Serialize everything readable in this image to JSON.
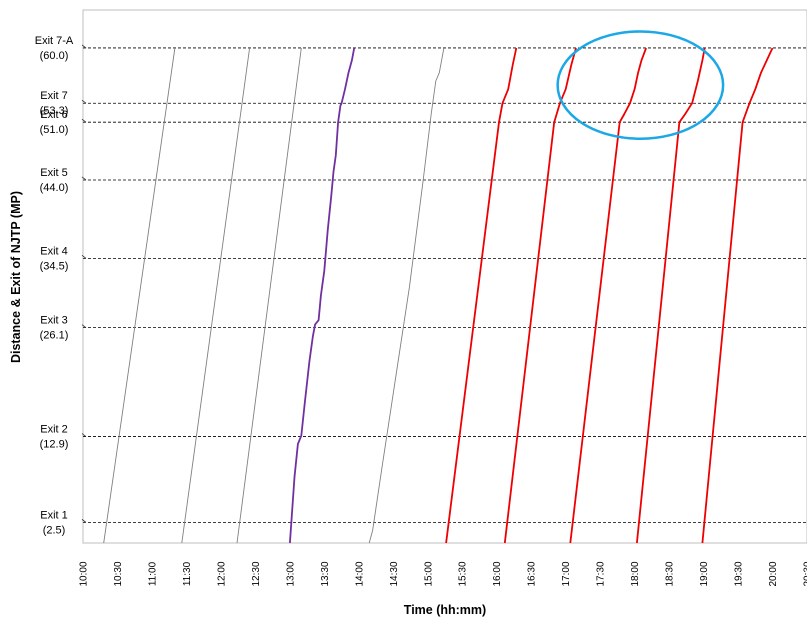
{
  "chart_data": {
    "type": "line",
    "title": "",
    "xlabel": "Time (hh:mm)",
    "ylabel": "Distance & Exit of NJTP  (MP)",
    "xlim": [
      "10:00",
      "20:30"
    ],
    "ylim": [
      0,
      64.6
    ],
    "x_ticks": [
      "10:00",
      "10:30",
      "11:00",
      "11:30",
      "12:00",
      "12:30",
      "13:00",
      "13:30",
      "14:00",
      "14:30",
      "15:00",
      "15:30",
      "16:00",
      "16:30",
      "17:00",
      "17:30",
      "18:00",
      "18:30",
      "19:00",
      "19:30",
      "20:00",
      "20:30"
    ],
    "exits": [
      {
        "name": "Exit 1",
        "mp": "(2.5)",
        "value": 2.5
      },
      {
        "name": "Exit 2",
        "mp": "(12.9)",
        "value": 12.9
      },
      {
        "name": "Exit 3",
        "mp": "(26.1)",
        "value": 26.1
      },
      {
        "name": "Exit 4",
        "mp": "(34.5)",
        "value": 34.5
      },
      {
        "name": "Exit 5",
        "mp": "(44.0)",
        "value": 44.0
      },
      {
        "name": "Exit 6",
        "mp": "(51.0)",
        "value": 51.0
      },
      {
        "name": "Exit 7",
        "mp": "(53.3)",
        "value": 53.3
      },
      {
        "name": "Exit 7-A",
        "mp": "(60.0)",
        "value": 60.0
      }
    ],
    "grid": false,
    "legend": "none",
    "highlight": {
      "shape": "ellipse",
      "color": "#1ca7e6",
      "x_center": "18:05",
      "y_center": 55.5,
      "x_halfwidth_min": 72,
      "y_halfwidth": 6.5
    },
    "series": [
      {
        "color": "#808080",
        "width": 0.9,
        "points": [
          [
            "10:18",
            0
          ],
          [
            "11:20",
            60
          ]
        ]
      },
      {
        "color": "#808080",
        "width": 0.9,
        "points": [
          [
            "11:26",
            0
          ],
          [
            "12:25",
            60
          ]
        ]
      },
      {
        "color": "#808080",
        "width": 0.9,
        "points": [
          [
            "12:14",
            0
          ],
          [
            "13:10",
            60
          ]
        ]
      },
      {
        "color": "#808080",
        "width": 0.9,
        "points": [
          [
            "14:09",
            0
          ],
          [
            "14:12",
            1.5
          ],
          [
            "14:20",
            9
          ],
          [
            "14:32",
            20
          ],
          [
            "14:44",
            31
          ],
          [
            "14:56",
            44
          ],
          [
            "15:03",
            52
          ],
          [
            "15:07",
            56
          ],
          [
            "15:10",
            57
          ],
          [
            "15:14",
            60
          ]
        ]
      },
      {
        "color": "#7030a0",
        "width": 1.8,
        "points": [
          [
            "13:00",
            0
          ],
          [
            "13:04",
            8
          ],
          [
            "13:07",
            12
          ],
          [
            "13:10",
            13
          ],
          [
            "13:13",
            17
          ],
          [
            "13:17",
            22
          ],
          [
            "13:20",
            25
          ],
          [
            "13:22",
            26.5
          ],
          [
            "13:25",
            27
          ],
          [
            "13:27",
            30
          ],
          [
            "13:30",
            33
          ],
          [
            "13:33",
            38
          ],
          [
            "13:36",
            42
          ],
          [
            "13:38",
            45
          ],
          [
            "13:40",
            47
          ],
          [
            "13:42",
            51
          ],
          [
            "13:44",
            53
          ],
          [
            "13:45",
            53.3
          ],
          [
            "13:48",
            55
          ],
          [
            "13:51",
            57
          ],
          [
            "13:54",
            58.5
          ],
          [
            "13:56",
            60
          ]
        ]
      },
      {
        "color": "#ee0000",
        "width": 1.8,
        "points": [
          [
            "15:16",
            0
          ],
          [
            "16:02",
            51
          ],
          [
            "16:05",
            53.3
          ],
          [
            "16:10",
            55
          ],
          [
            "16:14",
            58
          ],
          [
            "16:17",
            60
          ]
        ]
      },
      {
        "color": "#ee0000",
        "width": 1.8,
        "points": [
          [
            "16:07",
            0
          ],
          [
            "16:50",
            51
          ],
          [
            "16:55",
            53.3
          ],
          [
            "17:00",
            55
          ],
          [
            "17:05",
            58
          ],
          [
            "17:09",
            60
          ]
        ]
      },
      {
        "color": "#ee0000",
        "width": 1.8,
        "points": [
          [
            "17:04",
            0
          ],
          [
            "17:47",
            51
          ],
          [
            "17:51",
            52
          ],
          [
            "17:56",
            53.3
          ],
          [
            "18:00",
            55
          ],
          [
            "18:03",
            57
          ],
          [
            "18:06",
            58.5
          ],
          [
            "18:10",
            60
          ]
        ]
      },
      {
        "color": "#ee0000",
        "width": 1.8,
        "points": [
          [
            "18:02",
            0
          ],
          [
            "18:39",
            51
          ],
          [
            "18:44",
            52
          ],
          [
            "18:50",
            53.3
          ],
          [
            "18:55",
            56
          ],
          [
            "18:59",
            58.5
          ],
          [
            "19:01",
            60
          ]
        ]
      },
      {
        "color": "#ee0000",
        "width": 1.8,
        "points": [
          [
            "18:59",
            0
          ],
          [
            "19:34",
            51
          ],
          [
            "19:40",
            53.3
          ],
          [
            "19:45",
            55
          ],
          [
            "19:50",
            57
          ],
          [
            "19:55",
            58.5
          ],
          [
            "20:00",
            60
          ]
        ]
      }
    ]
  }
}
